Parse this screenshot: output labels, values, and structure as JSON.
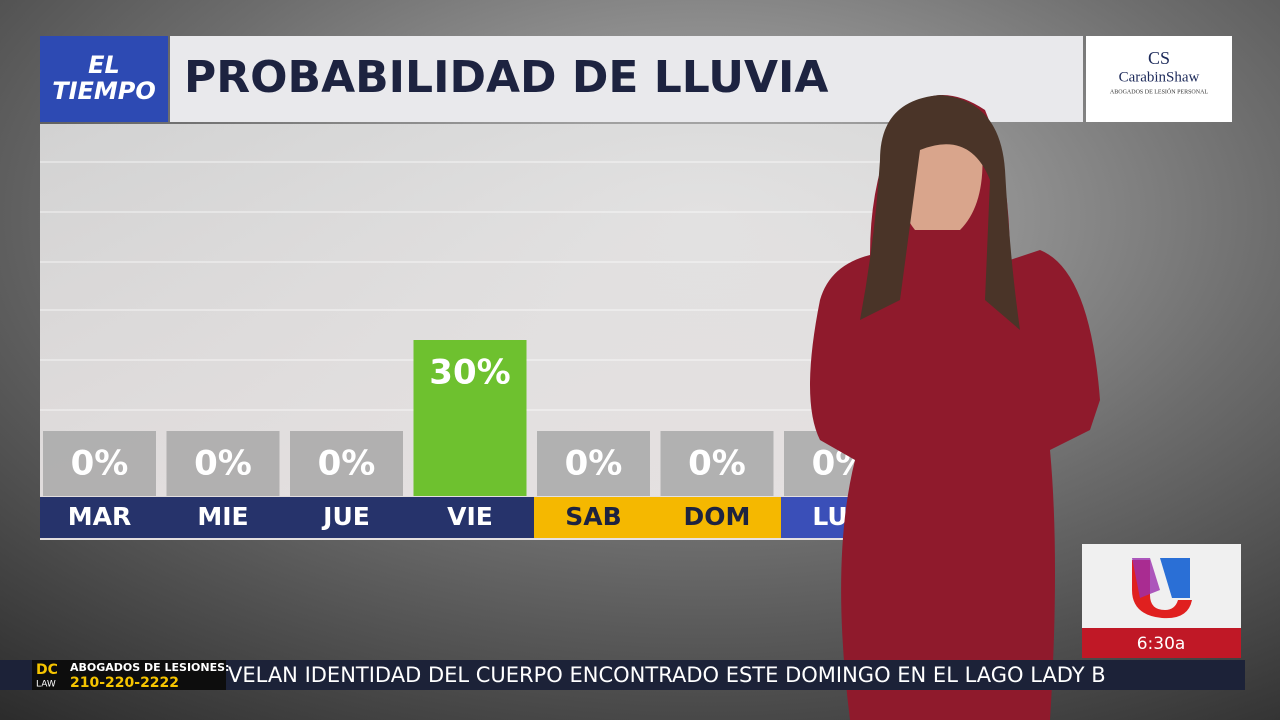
{
  "chart_data": {
    "type": "bar",
    "title": "PROBABILIDAD DE LLUVIA",
    "categories": [
      "MAR",
      "MIE",
      "JUE",
      "VIE",
      "SAB",
      "DOM",
      "LUN"
    ],
    "category_colors": [
      "#26336b",
      "#26336b",
      "#26336b",
      "#26336b",
      "#f5b800",
      "#f5b800",
      "#3a4fb8"
    ],
    "values": [
      0,
      0,
      0,
      30,
      0,
      0,
      0
    ],
    "value_labels": [
      "0%",
      "0%",
      "0%",
      "30%",
      "0%",
      "0%",
      "0%"
    ],
    "color": "#6ec12f",
    "ylim": [
      0,
      70
    ]
  },
  "branding": {
    "show_line1": "EL",
    "show_line2": "TIEMPO",
    "sponsor_mark": "CS",
    "sponsor_name": "CarabinShaw",
    "sponsor_tagline": "ABOGADOS DE LESIÓN PERSONAL",
    "time": "6:30a"
  },
  "ticker": {
    "ad_logo_top": "DC",
    "ad_logo_bottom": "LAW",
    "ad_line1": "ABOGADOS DE LESIONES:",
    "ad_phone": "210-220-2222",
    "headline": "VELAN IDENTIDAD DEL CUERPO ENCONTRADO ESTE DOMINGO EN EL LAGO LADY B"
  }
}
